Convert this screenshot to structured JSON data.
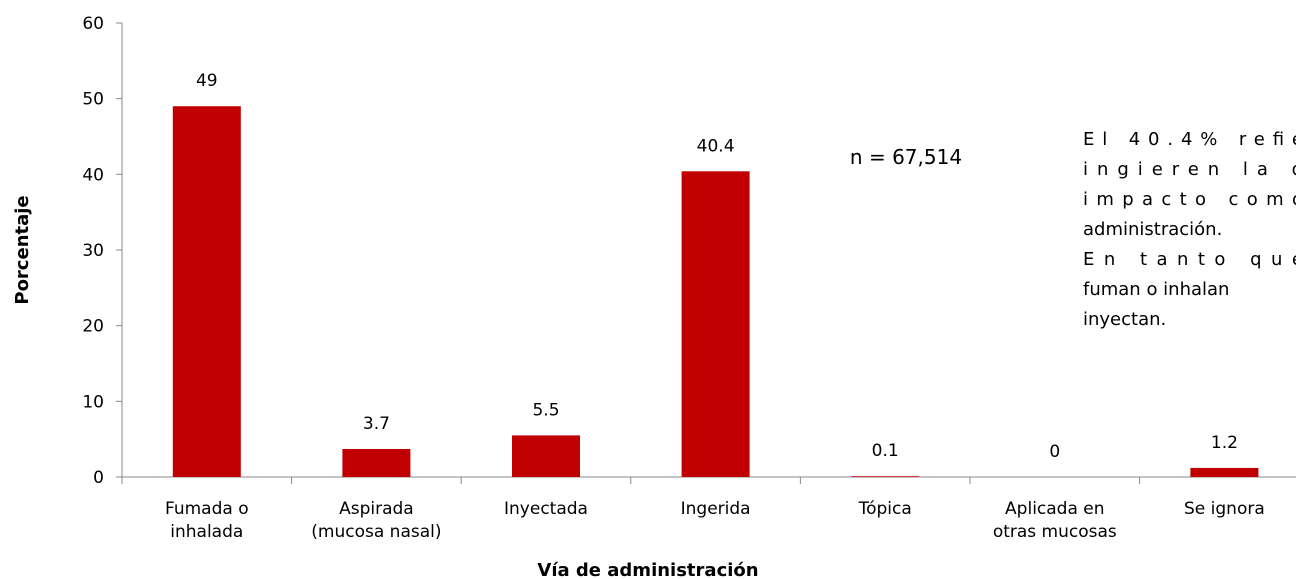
{
  "chart_data": {
    "type": "bar",
    "xlabel": "Vía de administración",
    "ylabel": "Porcentaje",
    "categories": [
      "Fumada o\ninhalada",
      "Aspirada\n(mucosa nasal)",
      "Inyectada",
      "Ingerida",
      "Tópica",
      "Aplicada en\notras mucosas",
      "Se ignora"
    ],
    "values": [
      49,
      3.7,
      5.5,
      40.4,
      0.1,
      0,
      1.2
    ],
    "color": "#c00000",
    "ylim": [
      0,
      60
    ],
    "yticks": [
      0,
      10,
      20,
      30,
      40,
      50,
      60
    ],
    "annotations": [
      "n = 67,514"
    ],
    "note_lines": [
      "El 40.4% refie",
      "ingieren la d",
      "impacto como",
      "administración.",
      "En tanto que",
      "fuman o inhalan",
      "inyectan."
    ]
  }
}
